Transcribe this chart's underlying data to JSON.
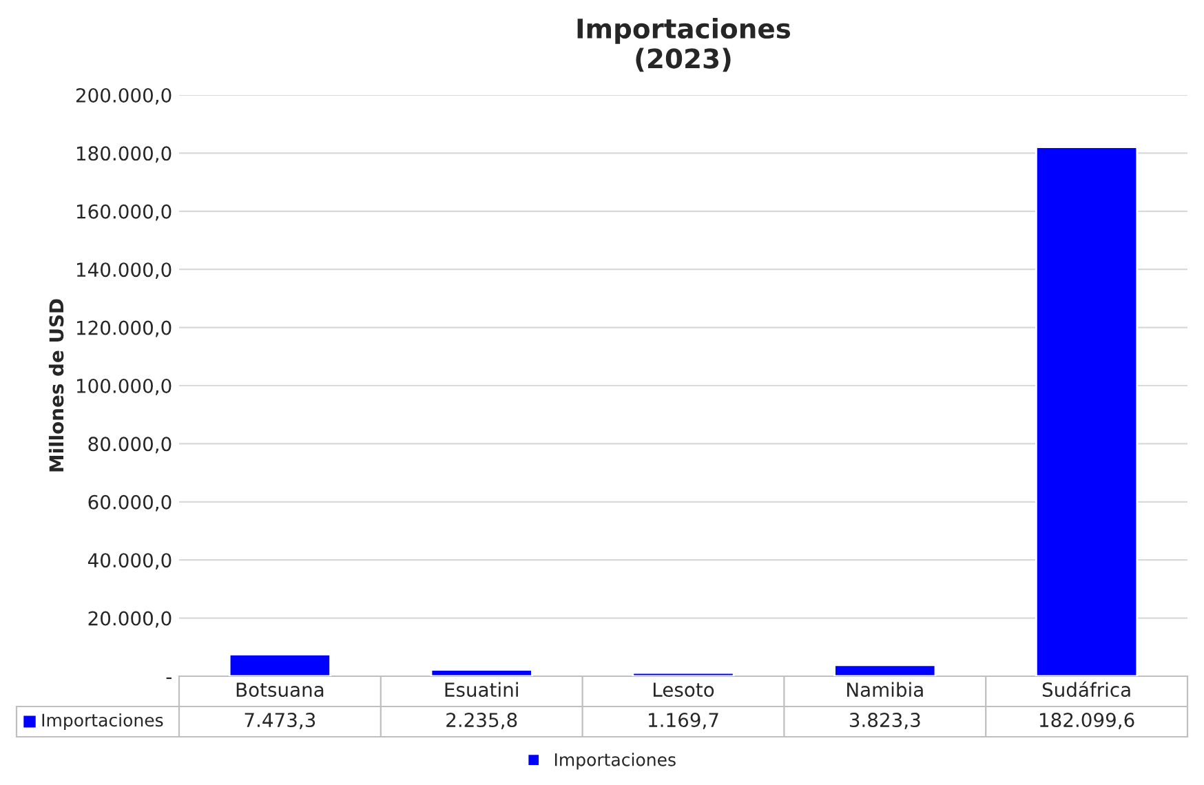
{
  "chart_data": {
    "type": "bar",
    "title": "Importaciones\n(2023)",
    "ylabel": "Millones de USD",
    "categories": [
      "Botsuana",
      "Esuatini",
      "Lesoto",
      "Namibia",
      "Sudáfrica"
    ],
    "series": [
      {
        "name": "Importaciones",
        "color": "#0000ff",
        "values": [
          7473.3,
          2235.8,
          1169.7,
          3823.3,
          182099.6
        ],
        "value_labels": [
          "7.473,3",
          "2.235,8",
          "1.169,7",
          "3.823,3",
          "182.099,6"
        ]
      }
    ],
    "ylim": [
      0,
      200000
    ],
    "yticks": [
      {
        "value": 0,
        "label": "-"
      },
      {
        "value": 20000,
        "label": "20.000,0"
      },
      {
        "value": 40000,
        "label": "40.000,0"
      },
      {
        "value": 60000,
        "label": "60.000,0"
      },
      {
        "value": 80000,
        "label": "80.000,0"
      },
      {
        "value": 100000,
        "label": "100.000,0"
      },
      {
        "value": 120000,
        "label": "120.000,0"
      },
      {
        "value": 140000,
        "label": "140.000,0"
      },
      {
        "value": 160000,
        "label": "160.000,0"
      },
      {
        "value": 180000,
        "label": "180.000,0"
      },
      {
        "value": 200000,
        "label": "200.000,0"
      }
    ],
    "grid": "y",
    "legend": "bottom"
  }
}
